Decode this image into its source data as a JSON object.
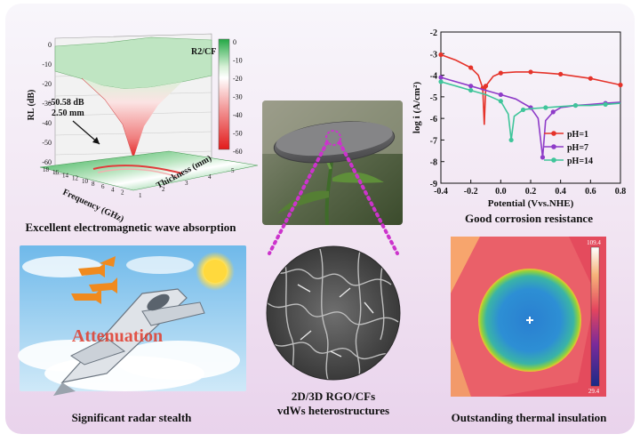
{
  "captions": {
    "emw": "Excellent electromagnetic wave absorption",
    "corrosion": "Good corrosion resistance",
    "radar": "Significant radar stealth",
    "thermal": "Outstanding thermal insulation",
    "center_line1": "2D/3D RGO/CFs",
    "center_line2": "vdWs heterostructures"
  },
  "emw_panel": {
    "legend_title": "R2/CF",
    "colorbar_ticks": [
      "0",
      "-10",
      "-20",
      "-30",
      "-40",
      "-50",
      "-60"
    ],
    "z_axis_label": "RL (dB)",
    "z_ticks": [
      "0",
      "-10",
      "-20",
      "-30",
      "-40",
      "-50",
      "-60"
    ],
    "x_axis_label": "Frequency (GHz)",
    "y_axis_label": "Thickness (mm)",
    "x_ticks": [
      "18",
      "16",
      "14",
      "12",
      "10",
      "8",
      "6",
      "4",
      "2"
    ],
    "y_ticks": [
      "1",
      "2",
      "3",
      "4",
      "5"
    ],
    "annotation_value": "-50.58 dB",
    "annotation_thickness": "2.50 mm"
  },
  "radar_panel": {
    "overlay_text": "Attenuation"
  },
  "thermal_panel": {
    "scale_max": "109.4",
    "scale_min": "29.4"
  },
  "colors": {
    "bg_top": "#f7f4fb",
    "bg_bottom": "#ecd9ef",
    "green": "#27b24a",
    "red": "#e5332a",
    "magenta": "#cc33cc"
  },
  "chart_data": {
    "type": "line",
    "title": "",
    "xlabel": "Potential (Vvs.NHE)",
    "ylabel": "log i (A/cm²)",
    "xlim": [
      -0.4,
      0.8
    ],
    "ylim": [
      -9,
      -2
    ],
    "xticks": [
      "-0.4",
      "-0.2",
      "0.0",
      "0.2",
      "0.4",
      "0.6",
      "0.8"
    ],
    "yticks": [
      "-2",
      "-3",
      "-4",
      "-5",
      "-6",
      "-7",
      "-8",
      "-9"
    ],
    "grid": false,
    "legend_position": "bottom-right",
    "series": [
      {
        "name": "pH=1",
        "color": "#e5332a",
        "x": [
          -0.4,
          -0.3,
          -0.2,
          -0.15,
          -0.12,
          -0.11,
          -0.1,
          -0.05,
          0.0,
          0.1,
          0.2,
          0.3,
          0.4,
          0.5,
          0.6,
          0.7,
          0.8
        ],
        "y": [
          -3.05,
          -3.3,
          -3.65,
          -4.0,
          -4.6,
          -6.3,
          -4.5,
          -4.05,
          -3.9,
          -3.85,
          -3.85,
          -3.9,
          -3.95,
          -4.05,
          -4.15,
          -4.3,
          -4.45
        ]
      },
      {
        "name": "pH=7",
        "color": "#8e3cc8",
        "x": [
          -0.4,
          -0.3,
          -0.2,
          -0.1,
          0.0,
          0.1,
          0.2,
          0.25,
          0.28,
          0.3,
          0.35,
          0.4,
          0.5,
          0.6,
          0.7,
          0.8
        ],
        "y": [
          -4.1,
          -4.3,
          -4.5,
          -4.7,
          -4.9,
          -5.1,
          -5.5,
          -6.0,
          -7.8,
          -6.1,
          -5.7,
          -5.5,
          -5.4,
          -5.35,
          -5.3,
          -5.25
        ]
      },
      {
        "name": "pH=14",
        "color": "#3fc59a",
        "x": [
          -0.4,
          -0.3,
          -0.2,
          -0.1,
          0.0,
          0.05,
          0.07,
          0.09,
          0.15,
          0.2,
          0.3,
          0.4,
          0.5,
          0.6,
          0.7,
          0.8
        ],
        "y": [
          -4.3,
          -4.5,
          -4.7,
          -4.9,
          -5.2,
          -5.8,
          -7.0,
          -5.9,
          -5.6,
          -5.55,
          -5.5,
          -5.45,
          -5.4,
          -5.4,
          -5.35,
          -5.3
        ]
      }
    ]
  }
}
